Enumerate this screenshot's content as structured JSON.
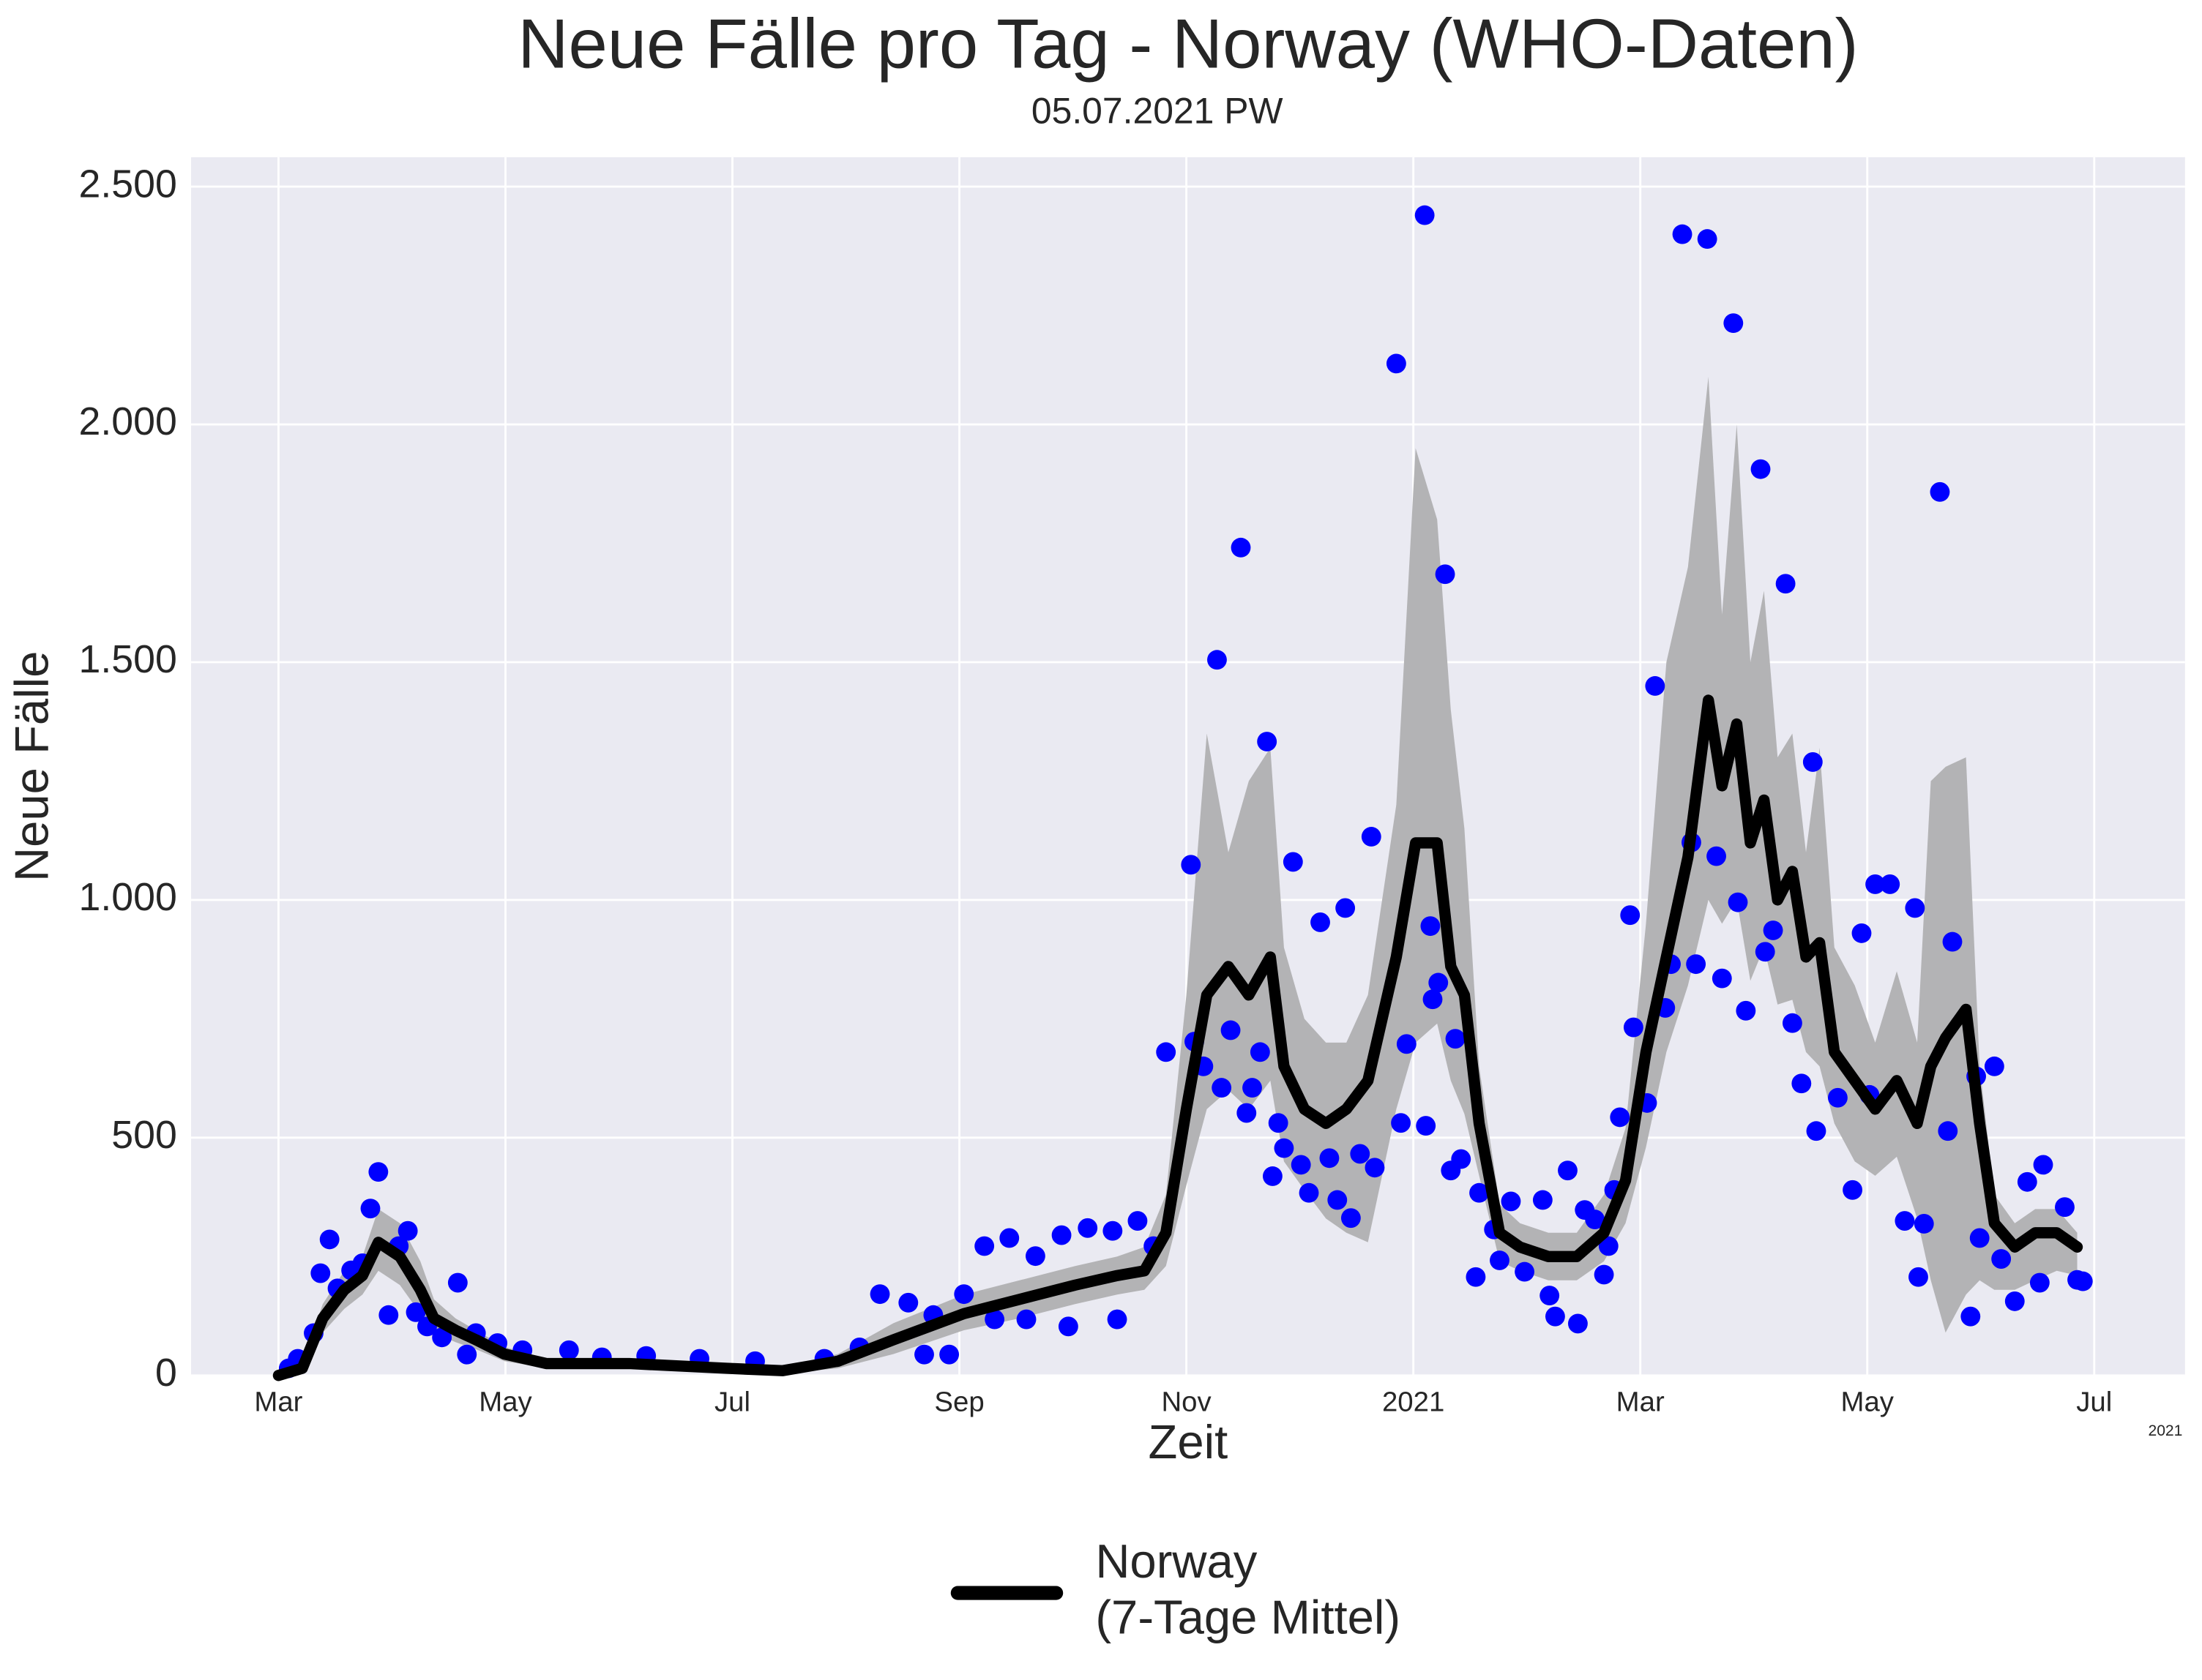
{
  "chart_data": {
    "type": "line",
    "title": "Neue Fälle pro Tag - Norway (WHO-Daten)",
    "subtitle": "05.07.2021 PW",
    "xlabel": "Zeit",
    "ylabel": "Neue Fälle",
    "x_offset_label": "2021",
    "xlim": [
      2.23,
      19.8
    ],
    "xticks": [
      {
        "value": 3,
        "label": "Mar"
      },
      {
        "value": 5,
        "label": "May"
      },
      {
        "value": 7,
        "label": "Jul"
      },
      {
        "value": 9,
        "label": "Sep"
      },
      {
        "value": 11,
        "label": "Nov"
      },
      {
        "value": 13,
        "label": "2021"
      },
      {
        "value": 15,
        "label": "Mar"
      },
      {
        "value": 17,
        "label": "May"
      },
      {
        "value": 19,
        "label": "Jul"
      }
    ],
    "ylim": [
      0,
      2562
    ],
    "yticks": [
      0,
      500,
      {
        "value": 1000,
        "label": "1.000"
      },
      {
        "value": 1500,
        "label": "1.500"
      },
      {
        "value": 2000,
        "label": "2.000"
      },
      {
        "value": 2500,
        "label": "2.500"
      }
    ],
    "grid": true,
    "legend": "bottom",
    "series": [
      {
        "type": "band",
        "color": "#b3b3b5",
        "x": [
          3.0,
          3.21,
          3.39,
          3.58,
          3.74,
          3.88,
          4.07,
          4.25,
          4.37,
          4.56,
          4.74,
          4.99,
          5.36,
          6.09,
          6.95,
          7.44,
          7.93,
          8.42,
          9.04,
          9.53,
          10.02,
          10.39,
          10.63,
          10.82,
          11.0,
          11.18,
          11.37,
          11.55,
          11.74,
          11.86,
          12.04,
          12.23,
          12.41,
          12.6,
          12.85,
          13.02,
          13.21,
          13.33,
          13.45,
          13.58,
          13.76,
          13.94,
          14.19,
          14.44,
          14.68,
          14.87,
          15.05,
          15.23,
          15.42,
          15.6,
          15.72,
          15.85,
          15.97,
          16.09,
          16.21,
          16.34,
          16.46,
          16.58,
          16.71,
          16.89,
          17.07,
          17.26,
          17.44,
          17.56,
          17.69,
          17.87,
          17.99,
          18.12,
          18.3,
          18.48,
          18.67,
          18.85
        ],
        "upper": [
          0,
          25,
          150,
          220,
          250,
          350,
          320,
          240,
          160,
          120,
          95,
          60,
          35,
          35,
          25,
          18,
          45,
          110,
          170,
          200,
          230,
          250,
          270,
          380,
          800,
          1350,
          1100,
          1250,
          1320,
          900,
          750,
          700,
          700,
          800,
          1200,
          1950,
          1800,
          1400,
          1150,
          650,
          360,
          320,
          300,
          300,
          380,
          520,
          950,
          1500,
          1700,
          2100,
          1600,
          2000,
          1500,
          1650,
          1300,
          1350,
          1100,
          1320,
          900,
          820,
          700,
          850,
          700,
          1250,
          1280,
          1300,
          650,
          380,
          320,
          350,
          350,
          300
        ],
        "lower": [
          0,
          5,
          90,
          140,
          170,
          220,
          190,
          130,
          90,
          70,
          55,
          30,
          15,
          15,
          8,
          4,
          15,
          45,
          95,
          120,
          150,
          170,
          180,
          230,
          400,
          560,
          600,
          560,
          620,
          450,
          390,
          330,
          300,
          280,
          560,
          700,
          740,
          620,
          550,
          420,
          240,
          220,
          200,
          200,
          240,
          320,
          480,
          680,
          820,
          1000,
          950,
          1000,
          830,
          900,
          780,
          790,
          680,
          650,
          530,
          450,
          420,
          460,
          330,
          200,
          90,
          170,
          200,
          180,
          180,
          200,
          220,
          210
        ]
      },
      {
        "type": "scatter",
        "color": "#0000ff",
        "x": [
          3.09,
          3.17,
          3.31,
          3.37,
          3.45,
          3.52,
          3.64,
          3.74,
          3.81,
          3.88,
          3.97,
          4.06,
          4.14,
          4.21,
          4.31,
          4.44,
          4.58,
          4.66,
          4.74,
          4.93,
          5.15,
          5.56,
          5.85,
          6.24,
          6.71,
          7.2,
          7.81,
          8.12,
          8.3,
          8.55,
          8.69,
          8.77,
          8.91,
          9.04,
          9.22,
          9.31,
          9.44,
          9.59,
          9.67,
          9.9,
          9.96,
          10.13,
          10.35,
          10.39,
          10.57,
          10.71,
          10.82,
          11.04,
          11.07,
          11.15,
          11.27,
          11.31,
          11.39,
          11.48,
          11.53,
          11.58,
          11.65,
          11.71,
          11.76,
          11.81,
          11.86,
          11.94,
          12.01,
          12.08,
          12.18,
          12.26,
          12.33,
          12.4,
          12.45,
          12.53,
          12.63,
          12.66,
          12.85,
          12.89,
          12.94,
          13.1,
          13.11,
          13.15,
          13.17,
          13.22,
          13.28,
          13.33,
          13.37,
          13.42,
          13.55,
          13.58,
          13.71,
          13.76,
          13.86,
          13.98,
          14.14,
          14.2,
          14.25,
          14.36,
          14.45,
          14.51,
          14.6,
          14.68,
          14.72,
          14.77,
          14.82,
          14.91,
          14.94,
          15.06,
          15.13,
          15.22,
          15.27,
          15.37,
          15.45,
          15.49,
          15.59,
          15.67,
          15.72,
          15.82,
          15.86,
          15.93,
          16.06,
          16.1,
          16.17,
          16.28,
          16.34,
          16.42,
          16.52,
          16.55,
          16.74,
          16.87,
          16.95,
          17.02,
          17.07,
          17.2,
          17.33,
          17.42,
          17.45,
          17.5,
          17.64,
          17.71,
          17.75,
          17.91,
          17.96,
          17.99,
          18.12,
          18.18,
          18.3,
          18.41,
          18.52,
          18.55,
          18.74,
          18.85,
          18.9
        ],
        "values": [
          15,
          35,
          89,
          215,
          286,
          183,
          221,
          236,
          351,
          428,
          127,
          272,
          304,
          133,
          103,
          80,
          195,
          44,
          89,
          68,
          53,
          53,
          38,
          41,
          35,
          30,
          35,
          59,
          171,
          153,
          44,
          127,
          44,
          171,
          272,
          118,
          289,
          118,
          251,
          295,
          103,
          310,
          304,
          118,
          325,
          272,
          680,
          1074,
          702,
          650,
          1505,
          605,
          726,
          1741,
          552,
          605,
          680,
          1333,
          419,
          531,
          478,
          1080,
          443,
          384,
          953,
          457,
          369,
          983,
          331,
          466,
          1133,
          437,
          2128,
          531,
          697,
          2440,
          525,
          945,
          791,
          826,
          1685,
          431,
          708,
          455,
          207,
          384,
          307,
          242,
          366,
          218,
          369,
          168,
          124,
          431,
          109,
          348,
          328,
          212,
          272,
          390,
          543,
          968,
          732,
          573,
          1450,
          773,
          865,
          2400,
          1121,
          865,
          2390,
          1092,
          835,
          2213,
          995,
          767,
          1906,
          891,
          936,
          1665,
          741,
          614,
          1290,
          514,
          584,
          390,
          930,
          590,
          1033,
          1033,
          325,
          983,
          207,
          319,
          1858,
          514,
          912,
          124,
          629,
          289,
          650,
          245,
          156,
          407,
          195,
          443,
          354,
          201,
          198
        ]
      },
      {
        "type": "line",
        "name": "Norway\n(7-Tage Mittel)",
        "color": "#000000",
        "x": [
          3.0,
          3.21,
          3.39,
          3.58,
          3.74,
          3.88,
          4.07,
          4.25,
          4.37,
          4.56,
          4.74,
          4.99,
          5.36,
          6.09,
          6.95,
          7.44,
          7.93,
          8.42,
          9.04,
          9.53,
          10.02,
          10.39,
          10.63,
          10.82,
          11.0,
          11.18,
          11.37,
          11.55,
          11.74,
          11.86,
          12.04,
          12.23,
          12.41,
          12.6,
          12.85,
          13.02,
          13.21,
          13.33,
          13.45,
          13.58,
          13.76,
          13.94,
          14.19,
          14.44,
          14.68,
          14.87,
          15.05,
          15.23,
          15.42,
          15.6,
          15.72,
          15.85,
          15.97,
          16.09,
          16.21,
          16.34,
          16.46,
          16.58,
          16.71,
          16.89,
          17.07,
          17.26,
          17.44,
          17.56,
          17.69,
          17.87,
          17.99,
          18.12,
          18.3,
          18.48,
          18.67,
          18.85
        ],
        "values": [
          0,
          15,
          120,
          180,
          210,
          280,
          250,
          180,
          120,
          95,
          75,
          45,
          25,
          25,
          15,
          10,
          30,
          75,
          130,
          160,
          190,
          210,
          220,
          300,
          560,
          800,
          860,
          800,
          880,
          650,
          560,
          530,
          560,
          620,
          880,
          1120,
          1120,
          860,
          800,
          530,
          300,
          270,
          250,
          250,
          300,
          410,
          680,
          880,
          1090,
          1420,
          1240,
          1370,
          1120,
          1210,
          1000,
          1060,
          880,
          910,
          680,
          620,
          560,
          620,
          530,
          650,
          710,
          770,
          530,
          320,
          270,
          300,
          300,
          270
        ]
      }
    ]
  }
}
